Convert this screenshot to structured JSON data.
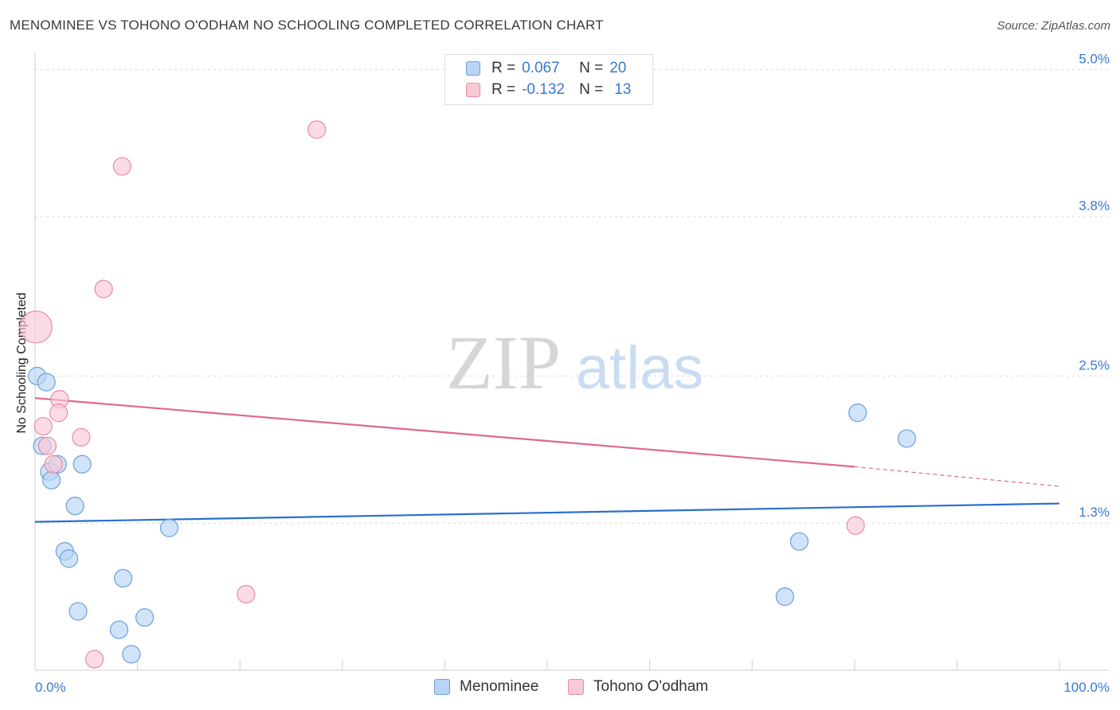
{
  "title": "MENOMINEE VS TOHONO O'ODHAM NO SCHOOLING COMPLETED CORRELATION CHART",
  "source": "Source: ZipAtlas.com",
  "watermark": {
    "zip": "ZIP",
    "atlas": "atlas"
  },
  "legend": {
    "r_label": "R =",
    "n_label": "N =",
    "series": [
      {
        "name": "Menominee",
        "r": "0.067",
        "n": "20"
      },
      {
        "name": "Tohono O'odham",
        "r": "-0.132",
        "n": "13"
      }
    ]
  },
  "colors": {
    "menominee_fill": "#b8d4f5",
    "menominee_stroke": "#6a9fe0",
    "menominee_line": "#2a6fcc",
    "tohono_fill": "#f9c9d6",
    "tohono_stroke": "#e88aa6",
    "tohono_line": "#e06890",
    "axis_text": "#3a78d4"
  },
  "chart_data": {
    "type": "scatter",
    "title": "MENOMINEE VS TOHONO O'ODHAM NO SCHOOLING COMPLETED CORRELATION CHART",
    "xlabel": "",
    "ylabel": "No Schooling Completed",
    "xlim": [
      0,
      100
    ],
    "ylim": [
      0.1,
      5.1
    ],
    "x_tick_labels": [
      "0.0%",
      "100.0%"
    ],
    "y_ticks": [
      {
        "value": 1.3,
        "label": "1.3%"
      },
      {
        "value": 2.5,
        "label": "2.5%"
      },
      {
        "value": 3.8,
        "label": "3.8%"
      },
      {
        "value": 5.0,
        "label": "5.0%"
      }
    ],
    "series": [
      {
        "name": "Menominee",
        "x": [
          0.2,
          1.1,
          0.7,
          1.4,
          2.2,
          4.6,
          1.6,
          3.9,
          2.9,
          13.1,
          3.3,
          8.6,
          4.2,
          8.2,
          10.7,
          9.4,
          80.3,
          85.1,
          74.6,
          73.2
        ],
        "y": [
          2.5,
          2.45,
          1.93,
          1.72,
          1.78,
          1.78,
          1.65,
          1.44,
          1.07,
          1.26,
          1.01,
          0.85,
          0.58,
          0.43,
          0.53,
          0.23,
          2.2,
          1.99,
          1.15,
          0.7
        ],
        "sizes": [
          11,
          11,
          11,
          11,
          11,
          11,
          11,
          11,
          11,
          11,
          11,
          11,
          11,
          11,
          11,
          11,
          11,
          11,
          11,
          11
        ],
        "trend": {
          "x": [
            0,
            100
          ],
          "y": [
            1.31,
            1.46
          ]
        }
      },
      {
        "name": "Tohono O'odham",
        "x": [
          0.1,
          2.4,
          8.5,
          27.5,
          6.7,
          2.3,
          0.8,
          4.5,
          1.2,
          1.8,
          80.1,
          20.6,
          5.8
        ],
        "y": [
          2.9,
          2.31,
          4.21,
          4.51,
          3.21,
          2.2,
          2.09,
          2.0,
          1.93,
          1.78,
          1.28,
          0.72,
          0.19
        ],
        "sizes": [
          20,
          11,
          11,
          11,
          11,
          11,
          11,
          11,
          11,
          11,
          11,
          11,
          11
        ],
        "trend": {
          "x": [
            0,
            80
          ],
          "y": [
            2.32,
            1.76
          ],
          "dashed_extension": {
            "x": [
              80,
              100
            ],
            "y": [
              1.76,
              1.6
            ]
          }
        }
      }
    ]
  }
}
